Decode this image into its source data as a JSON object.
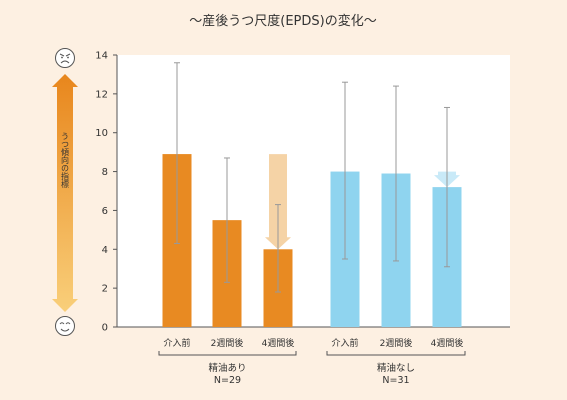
{
  "title": "〜産後うつ尺度(EPDS)の変化〜",
  "side_label": "うつ傾向の指標",
  "face_top": "☹",
  "face_bottom": "☺",
  "colors": {
    "background": "#fdf0e2",
    "plot_bg": "#ffffff",
    "orange": "#e88a22",
    "orange_light": "#f5d3a6",
    "blue": "#8fd4ef",
    "blue_light": "#c9eaf8",
    "error": "#999999"
  },
  "chart_data": {
    "type": "bar",
    "ylim": [
      0,
      14
    ],
    "yticks": [
      0,
      2,
      4,
      6,
      8,
      10,
      12,
      14
    ],
    "grid": false,
    "groups": [
      {
        "name": "精油あり",
        "n": "N=29",
        "color": "orange",
        "categories": [
          "介入前",
          "2週間後",
          "4週間後"
        ],
        "values": [
          8.9,
          5.5,
          4.0
        ],
        "error_low": [
          4.3,
          2.3,
          1.8
        ],
        "error_high": [
          13.6,
          8.7,
          6.3
        ]
      },
      {
        "name": "精油なし",
        "n": "N=31",
        "color": "blue",
        "categories": [
          "介入前",
          "2週間後",
          "4週間後"
        ],
        "values": [
          8.0,
          7.9,
          7.2
        ],
        "error_low": [
          3.5,
          3.4,
          3.1
        ],
        "error_high": [
          12.6,
          12.4,
          11.3
        ]
      }
    ],
    "change_arrows": [
      {
        "group": 0,
        "bar": 2,
        "from": 8.9,
        "to": 4.0,
        "color": "orange_light"
      },
      {
        "group": 1,
        "bar": 2,
        "from": 8.0,
        "to": 7.2,
        "color": "blue_light"
      }
    ]
  }
}
